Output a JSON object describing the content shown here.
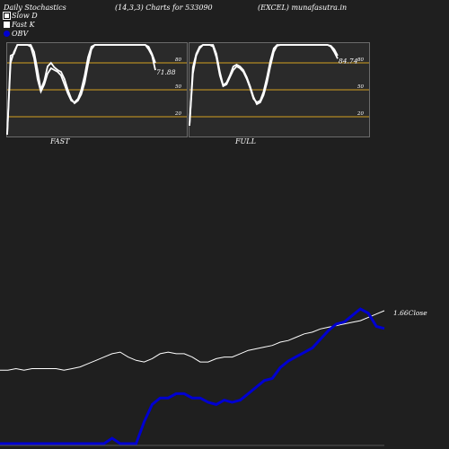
{
  "header": {
    "left": "Daily Stochastics",
    "middle": "(14,3,3) Charts for 533090",
    "right": "(EXCEL) munafasutra.in"
  },
  "legend": [
    {
      "label": "Slow  D",
      "color": "#ffffff"
    },
    {
      "label": "Fast K",
      "color": "#ffffff"
    },
    {
      "label": "OBV",
      "color": "#0000d0"
    }
  ],
  "panels": {
    "fast": {
      "label": "FAST",
      "last_value": "71.88"
    },
    "full": {
      "label": "FULL",
      "last_value": "84.74"
    }
  },
  "colors": {
    "background": "#1f1f1f",
    "panel_bg": "#2a2a2a",
    "level_line": "#d4a020",
    "price_line": "#ffffff",
    "obv_line": "#0000d0"
  },
  "chart_data": [
    {
      "type": "line",
      "name": "fast-stochastics",
      "ylim": [
        0,
        100
      ],
      "yticks": [
        20,
        50,
        80
      ],
      "x": [
        1,
        2,
        3,
        4,
        5,
        6,
        7,
        8,
        9,
        10,
        11,
        12,
        13,
        14,
        15,
        16,
        17,
        18,
        19,
        20,
        21,
        22,
        23,
        24,
        25,
        26,
        27,
        28,
        29,
        30,
        31,
        32,
        33,
        34,
        35,
        36,
        37,
        38,
        39,
        40,
        41,
        42,
        43,
        44,
        45
      ],
      "series": [
        {
          "values": [
            0,
            88,
            90,
            100,
            100,
            100,
            100,
            100,
            92,
            72,
            50,
            60,
            76,
            80,
            75,
            72,
            70,
            62,
            50,
            40,
            35,
            38,
            45,
            58,
            78,
            95,
            100,
            100,
            100,
            100,
            100,
            100,
            100,
            100,
            100,
            100,
            100,
            100,
            100,
            100,
            100,
            100,
            95,
            88,
            71.88
          ]
        },
        {
          "values": [
            0,
            80,
            92,
            100,
            100,
            100,
            100,
            98,
            85,
            62,
            48,
            56,
            68,
            74,
            72,
            70,
            66,
            56,
            46,
            38,
            36,
            40,
            50,
            66,
            86,
            98,
            100,
            100,
            100,
            100,
            100,
            100,
            100,
            100,
            100,
            100,
            100,
            100,
            100,
            100,
            100,
            100,
            98,
            90,
            80
          ]
        }
      ]
    },
    {
      "type": "line",
      "name": "full-stochastics",
      "ylim": [
        0,
        100
      ],
      "yticks": [
        20,
        50,
        80
      ],
      "x": [
        1,
        2,
        3,
        4,
        5,
        6,
        7,
        8,
        9,
        10,
        11,
        12,
        13,
        14,
        15,
        16,
        17,
        18,
        19,
        20,
        21,
        22,
        23,
        24,
        25,
        26,
        27,
        28,
        29,
        30,
        31,
        32,
        33,
        34,
        35,
        36,
        37,
        38,
        39,
        40,
        41,
        42,
        43,
        44,
        45
      ],
      "series": [
        {
          "values": [
            10,
            75,
            90,
            98,
            100,
            100,
            100,
            100,
            90,
            70,
            55,
            58,
            66,
            76,
            78,
            76,
            72,
            64,
            54,
            42,
            34,
            36,
            44,
            58,
            76,
            92,
            99,
            100,
            100,
            100,
            100,
            100,
            100,
            100,
            100,
            100,
            100,
            100,
            100,
            100,
            100,
            100,
            98,
            92,
            84.74
          ]
        },
        {
          "values": [
            10,
            68,
            88,
            96,
            100,
            100,
            100,
            98,
            86,
            66,
            54,
            56,
            64,
            72,
            76,
            74,
            70,
            62,
            52,
            40,
            36,
            38,
            48,
            64,
            82,
            96,
            100,
            100,
            100,
            100,
            100,
            100,
            100,
            100,
            100,
            100,
            100,
            100,
            100,
            100,
            100,
            100,
            99,
            95,
            88
          ]
        }
      ]
    },
    {
      "type": "line",
      "name": "price-and-obv",
      "close_label": "1.66Close",
      "series": [
        {
          "values": [
            1.3,
            1.3,
            1.31,
            1.3,
            1.31,
            1.31,
            1.31,
            1.31,
            1.3,
            1.31,
            1.32,
            1.34,
            1.36,
            1.38,
            1.4,
            1.41,
            1.38,
            1.36,
            1.35,
            1.37,
            1.4,
            1.41,
            1.4,
            1.4,
            1.38,
            1.35,
            1.35,
            1.37,
            1.38,
            1.38,
            1.4,
            1.42,
            1.43,
            1.44,
            1.45,
            1.47,
            1.48,
            1.5,
            1.52,
            1.53,
            1.55,
            1.56,
            1.57,
            1.58,
            1.59,
            1.6,
            1.62,
            1.64,
            1.66
          ]
        },
        {
          "values": [
            0,
            0,
            0,
            0,
            0,
            0,
            0,
            0,
            0,
            0,
            0,
            0,
            0,
            0,
            5,
            0,
            0,
            0,
            20,
            36,
            42,
            42,
            46,
            46,
            42,
            42,
            38,
            36,
            40,
            38,
            40,
            46,
            52,
            58,
            60,
            70,
            76,
            80,
            84,
            88,
            96,
            104,
            110,
            112,
            118,
            124,
            120,
            108,
            106
          ]
        }
      ]
    }
  ]
}
